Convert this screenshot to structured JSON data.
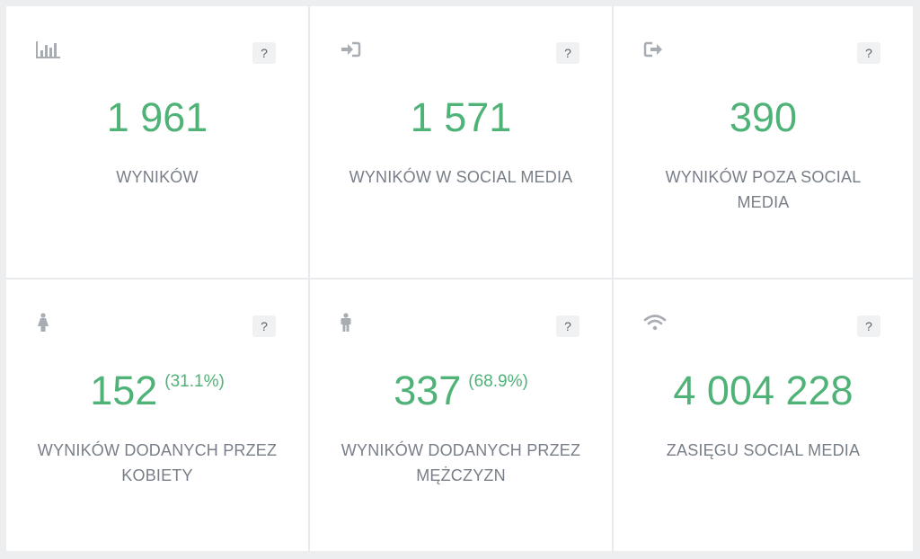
{
  "cards": [
    {
      "value": "1 961",
      "pct": "",
      "label": "WYNIKÓW",
      "icon": "bar-chart-icon",
      "help": "?"
    },
    {
      "value": "1 571",
      "pct": "",
      "label": "WYNIKÓW W SOCIAL MEDIA",
      "icon": "sign-in-icon",
      "help": "?"
    },
    {
      "value": "390",
      "pct": "",
      "label": "WYNIKÓW POZA SOCIAL MEDIA",
      "icon": "sign-out-icon",
      "help": "?"
    },
    {
      "value": "152",
      "pct": "(31.1%)",
      "label": "WYNIKÓW DODANYCH PRZEZ KOBIETY",
      "icon": "female-icon",
      "help": "?"
    },
    {
      "value": "337",
      "pct": "(68.9%)",
      "label": "WYNIKÓW DODANYCH PRZEZ MĘŻCZYZN",
      "icon": "male-icon",
      "help": "?"
    },
    {
      "value": "4 004 228",
      "pct": "",
      "label": "ZASIĘGU SOCIAL MEDIA",
      "icon": "wifi-icon",
      "help": "?"
    }
  ],
  "colors": {
    "value": "#4fb277",
    "label": "#787e88",
    "icon": "#a8acb3",
    "background": "#eceef0"
  }
}
